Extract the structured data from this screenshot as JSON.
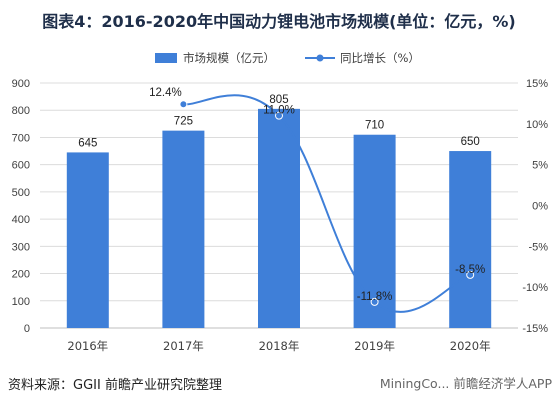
{
  "title": "图表4：2016-2020年中国动力锂电池市场规模(单位：亿元，%)",
  "source": "资料来源：GGII 前瞻产业研究院整理",
  "watermark": "MiningCo... 前瞻经济学人APP",
  "colors": {
    "bar": "#3f7fd8",
    "line": "#3f7fd8",
    "grid": "#dcdcdc",
    "text": "#404040"
  },
  "chart_data": {
    "type": "bar",
    "categories": [
      "2016年",
      "2017年",
      "2018年",
      "2019年",
      "2020年"
    ],
    "series": [
      {
        "name": "市场规模（亿元）",
        "type": "bar",
        "axis": "left",
        "values": [
          645,
          725,
          805,
          710,
          650
        ],
        "labels": [
          "645",
          "725",
          "805",
          "710",
          "650"
        ]
      },
      {
        "name": "同比增长（%）",
        "type": "line",
        "axis": "right",
        "values": [
          null,
          12.4,
          11.0,
          -11.8,
          -8.5
        ],
        "labels": [
          "",
          "12.4%",
          "11.0%",
          "-11.8%",
          "-8.5%"
        ]
      }
    ],
    "ylim_left": [
      0,
      900
    ],
    "yticks_left": [
      "0",
      "100",
      "200",
      "300",
      "400",
      "500",
      "600",
      "700",
      "800",
      "900"
    ],
    "ylim_right": [
      -15,
      15
    ],
    "yticks_right": [
      "-15%",
      "-10%",
      "-5%",
      "0%",
      "5%",
      "10%",
      "15%"
    ],
    "grid": true,
    "legend_position": "top"
  }
}
